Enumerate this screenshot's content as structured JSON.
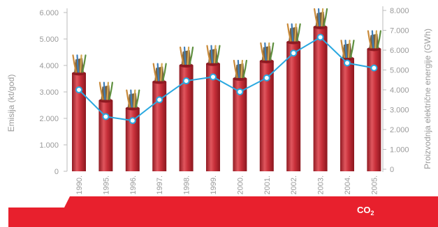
{
  "chart_data": {
    "type": "bar",
    "categories": [
      "1990.",
      "1995.",
      "1996.",
      "1997.",
      "1998.",
      "1999.",
      "2000.",
      "2001.",
      "2002.",
      "2003.",
      "2004.",
      "2005."
    ],
    "series": [
      {
        "name": "CO₂",
        "axis": "left",
        "type": "bar",
        "values": [
          3700,
          2670,
          2380,
          3380,
          4000,
          4060,
          3500,
          4160,
          4880,
          5450,
          4260,
          4620
        ]
      },
      {
        "name": "",
        "axis": "right",
        "type": "line",
        "values": [
          4000,
          2650,
          2450,
          3500,
          4450,
          4650,
          3900,
          4600,
          5850,
          6650,
          5350,
          5100
        ]
      }
    ],
    "title": "",
    "ylabel_left": "Emisija (kt/god)",
    "ylabel_right": "Proizvodnja električne energije (GWh)",
    "yleft_ticks": [
      "0",
      "1.000",
      "2.000",
      "3.000",
      "4.000",
      "5.000",
      "6.000"
    ],
    "yleft_lim": [
      0,
      6000
    ],
    "yright_ticks": [
      "0",
      "1.000",
      "2.000",
      "3.000",
      "4.000",
      "5.000",
      "6.000",
      "7.000",
      "8.000"
    ],
    "yright_lim": [
      0,
      8000
    ],
    "grid": false,
    "legend_label": {
      "main": "CO",
      "sub": "2"
    },
    "colors": {
      "bar": "#c8303a",
      "bar_dark": "#8f1a22",
      "bar_light": "#e0565e",
      "line": "#2aa8e0",
      "marker_fill": "#ffffff",
      "banner": "#e8202d",
      "axis": "#bbbbbb",
      "text": "#9a9a9a"
    },
    "bar_motif": "cable-with-copper-wires"
  }
}
